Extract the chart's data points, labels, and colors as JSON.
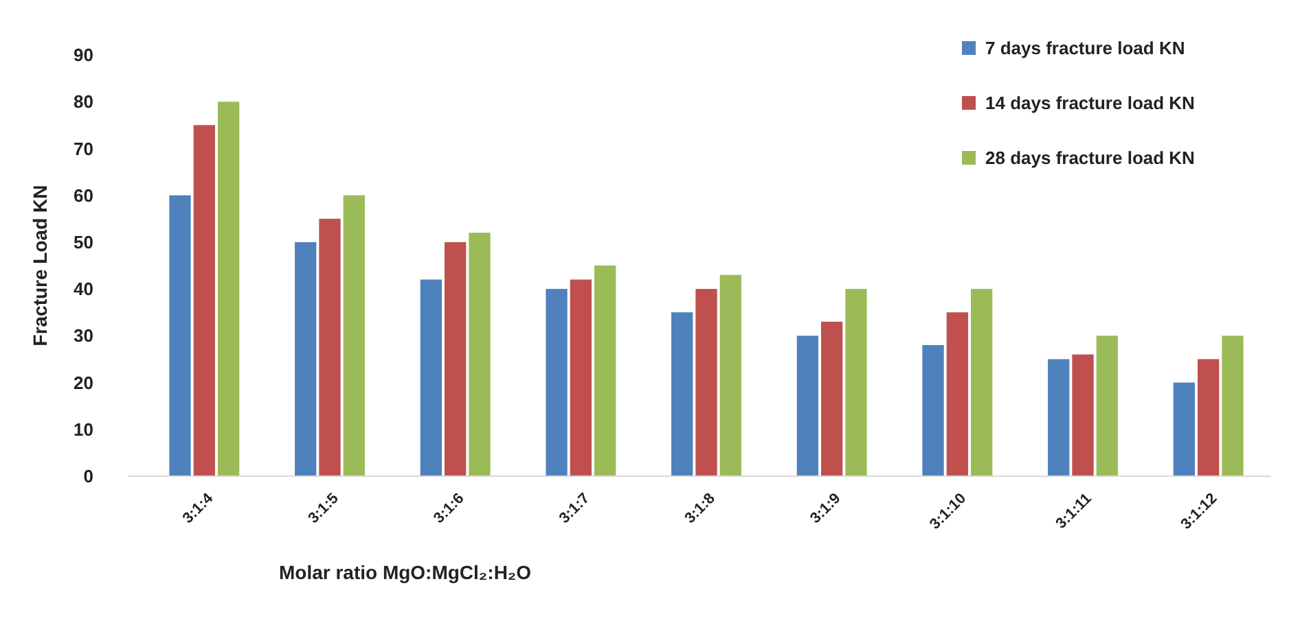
{
  "chart_data": {
    "type": "bar",
    "xlabel": "Molar ratio MgO:MgCl₂:H₂O",
    "ylabel": "Fracture Load KN",
    "categories": [
      "3:1:4",
      "3:1:5",
      "3:1:6",
      "3:1:7",
      "3:1:8",
      "3:1:9",
      "3:1:10",
      "3:1:11",
      "3:1:12"
    ],
    "series": [
      {
        "name": "7 days fracture load KN",
        "color": "#4f81bd",
        "values": [
          60,
          50,
          42,
          40,
          35,
          30,
          28,
          25,
          20
        ]
      },
      {
        "name": "14 days fracture load KN",
        "color": "#c0504d",
        "values": [
          75,
          55,
          50,
          42,
          40,
          33,
          35,
          26,
          25
        ]
      },
      {
        "name": "28 days fracture load KN",
        "color": "#9bbb59",
        "values": [
          80,
          60,
          52,
          45,
          43,
          40,
          40,
          30,
          30
        ]
      }
    ],
    "ylim": [
      0,
      90
    ],
    "yticks": [
      0,
      10,
      20,
      30,
      40,
      50,
      60,
      70,
      80,
      90
    ],
    "grid": false,
    "legend": "top right"
  }
}
